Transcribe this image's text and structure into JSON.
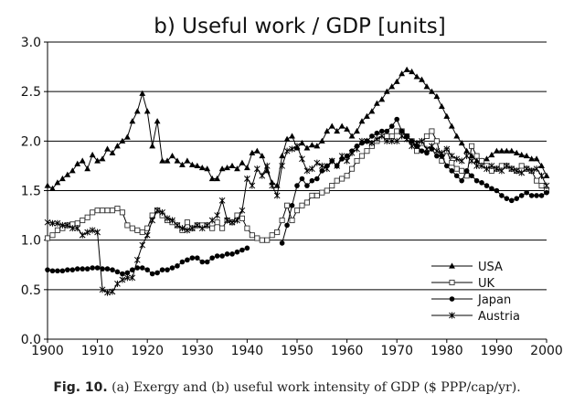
{
  "chart_data": {
    "type": "line",
    "title": "b) Useful work / GDP [units]",
    "xlabel": "",
    "ylabel": "",
    "xlim": [
      1900,
      2000
    ],
    "ylim": [
      0,
      3
    ],
    "x_ticks": [
      "1900",
      "1910",
      "1920",
      "1930",
      "1940",
      "1950",
      "1960",
      "1970",
      "1980",
      "1990",
      "2000"
    ],
    "y_ticks": [
      "0.0",
      "0.5",
      "1.0",
      "1.5",
      "2.0",
      "2.5",
      "3.0"
    ],
    "grid": "horizontal",
    "legend_position": "bottom-right",
    "series": [
      {
        "name": "USA",
        "marker": "triangle",
        "x": [
          1900,
          1901,
          1902,
          1903,
          1904,
          1905,
          1906,
          1907,
          1908,
          1909,
          1910,
          1911,
          1912,
          1913,
          1914,
          1915,
          1916,
          1917,
          1918,
          1919,
          1920,
          1921,
          1922,
          1923,
          1924,
          1925,
          1926,
          1927,
          1928,
          1929,
          1930,
          1931,
          1932,
          1933,
          1934,
          1935,
          1936,
          1937,
          1938,
          1939,
          1940,
          1941,
          1942,
          1943,
          1944,
          1945,
          1946,
          1947,
          1948,
          1949,
          1950,
          1951,
          1952,
          1953,
          1954,
          1955,
          1956,
          1957,
          1958,
          1959,
          1960,
          1961,
          1962,
          1963,
          1964,
          1965,
          1966,
          1967,
          1968,
          1969,
          1970,
          1971,
          1972,
          1973,
          1974,
          1975,
          1976,
          1977,
          1978,
          1979,
          1980,
          1981,
          1982,
          1983,
          1984,
          1985,
          1986,
          1987,
          1988,
          1989,
          1990,
          1991,
          1992,
          1993,
          1994,
          1995,
          1996,
          1997,
          1998,
          1999,
          2000
        ],
        "values": [
          1.55,
          1.52,
          1.58,
          1.62,
          1.66,
          1.7,
          1.77,
          1.8,
          1.72,
          1.86,
          1.8,
          1.82,
          1.92,
          1.88,
          1.95,
          2.0,
          2.04,
          2.2,
          2.3,
          2.48,
          2.3,
          1.95,
          2.2,
          1.8,
          1.8,
          1.85,
          1.8,
          1.76,
          1.8,
          1.76,
          1.75,
          1.73,
          1.72,
          1.62,
          1.62,
          1.72,
          1.73,
          1.75,
          1.72,
          1.78,
          1.73,
          1.88,
          1.9,
          1.85,
          1.7,
          1.58,
          1.55,
          1.85,
          2.02,
          2.05,
          1.93,
          1.98,
          1.93,
          1.96,
          1.95,
          2.0,
          2.1,
          2.15,
          2.1,
          2.15,
          2.12,
          2.05,
          2.1,
          2.2,
          2.25,
          2.3,
          2.38,
          2.42,
          2.5,
          2.55,
          2.6,
          2.68,
          2.72,
          2.7,
          2.65,
          2.62,
          2.55,
          2.5,
          2.45,
          2.35,
          2.25,
          2.15,
          2.05,
          1.98,
          1.9,
          1.85,
          1.8,
          1.8,
          1.82,
          1.86,
          1.9,
          1.9,
          1.9,
          1.9,
          1.88,
          1.86,
          1.85,
          1.82,
          1.82,
          1.75,
          1.65
        ]
      },
      {
        "name": "UK",
        "marker": "square",
        "x": [
          1900,
          1901,
          1902,
          1903,
          1904,
          1905,
          1906,
          1907,
          1908,
          1909,
          1910,
          1911,
          1912,
          1913,
          1914,
          1915,
          1916,
          1917,
          1918,
          1919,
          1920,
          1921,
          1922,
          1923,
          1924,
          1925,
          1926,
          1927,
          1928,
          1929,
          1930,
          1931,
          1932,
          1933,
          1934,
          1935,
          1936,
          1937,
          1938,
          1939,
          1940,
          1941,
          1942,
          1943,
          1944,
          1945,
          1946,
          1947,
          1948,
          1949,
          1950,
          1951,
          1952,
          1953,
          1954,
          1955,
          1956,
          1957,
          1958,
          1959,
          1960,
          1961,
          1962,
          1963,
          1964,
          1965,
          1966,
          1967,
          1968,
          1969,
          1970,
          1971,
          1972,
          1973,
          1974,
          1975,
          1976,
          1977,
          1978,
          1979,
          1980,
          1981,
          1982,
          1983,
          1984,
          1985,
          1986,
          1987,
          1988,
          1989,
          1990,
          1991,
          1992,
          1993,
          1994,
          1995,
          1996,
          1997,
          1998,
          1999,
          2000
        ],
        "values": [
          1.02,
          1.05,
          1.1,
          1.12,
          1.15,
          1.16,
          1.17,
          1.2,
          1.23,
          1.28,
          1.3,
          1.3,
          1.3,
          1.3,
          1.32,
          1.28,
          1.15,
          1.12,
          1.1,
          1.08,
          1.12,
          1.25,
          1.3,
          1.25,
          1.2,
          1.18,
          1.15,
          1.1,
          1.18,
          1.12,
          1.15,
          1.15,
          1.15,
          1.12,
          1.18,
          1.12,
          1.2,
          1.18,
          1.25,
          1.22,
          1.12,
          1.05,
          1.02,
          1.0,
          1.0,
          1.05,
          1.08,
          1.2,
          1.35,
          1.2,
          1.3,
          1.35,
          1.38,
          1.45,
          1.45,
          1.48,
          1.5,
          1.55,
          1.6,
          1.62,
          1.65,
          1.72,
          1.8,
          1.85,
          1.9,
          1.95,
          2.0,
          2.02,
          2.05,
          2.05,
          2.1,
          2.1,
          2.05,
          2.0,
          1.9,
          1.98,
          2.05,
          2.1,
          2.0,
          1.8,
          1.9,
          1.78,
          1.72,
          1.7,
          1.65,
          1.95,
          1.85,
          1.8,
          1.75,
          1.7,
          1.72,
          1.75,
          1.75,
          1.72,
          1.7,
          1.75,
          1.72,
          1.7,
          1.6,
          1.55,
          1.5
        ]
      },
      {
        "name": "Japan",
        "marker": "circle",
        "x": [
          1900,
          1901,
          1902,
          1903,
          1904,
          1905,
          1906,
          1907,
          1908,
          1909,
          1910,
          1911,
          1912,
          1913,
          1914,
          1915,
          1916,
          1917,
          1918,
          1919,
          1920,
          1921,
          1922,
          1923,
          1924,
          1925,
          1926,
          1927,
          1928,
          1929,
          1930,
          1931,
          1932,
          1933,
          1934,
          1935,
          1936,
          1937,
          1938,
          1939,
          1940,
          null,
          1947,
          1948,
          1949,
          1950,
          1951,
          1952,
          1953,
          1954,
          1955,
          1956,
          1957,
          1958,
          1959,
          1960,
          1961,
          1962,
          1963,
          1964,
          1965,
          1966,
          1967,
          1968,
          1969,
          1970,
          1971,
          1972,
          1973,
          1974,
          1975,
          1976,
          1977,
          1978,
          1979,
          1980,
          1981,
          1982,
          1983,
          1984,
          1985,
          1986,
          1987,
          1988,
          1989,
          1990,
          1991,
          1992,
          1993,
          1994,
          1995,
          1996,
          1997,
          1998,
          1999,
          2000
        ],
        "values": [
          0.7,
          0.69,
          0.69,
          0.69,
          0.7,
          0.7,
          0.71,
          0.71,
          0.71,
          0.72,
          0.72,
          0.71,
          0.71,
          0.7,
          0.68,
          0.66,
          0.67,
          0.7,
          0.72,
          0.72,
          0.7,
          0.66,
          0.67,
          0.7,
          0.7,
          0.72,
          0.74,
          0.78,
          0.8,
          0.82,
          0.82,
          0.78,
          0.78,
          0.82,
          0.84,
          0.84,
          0.86,
          0.86,
          0.88,
          0.9,
          0.92,
          null,
          0.97,
          1.15,
          1.35,
          1.55,
          1.62,
          1.55,
          1.6,
          1.62,
          1.7,
          1.75,
          1.8,
          1.75,
          1.82,
          1.85,
          1.9,
          1.95,
          1.98,
          2.0,
          2.05,
          2.08,
          2.1,
          2.1,
          2.15,
          2.22,
          2.1,
          2.05,
          2.0,
          1.95,
          1.9,
          1.88,
          1.92,
          1.85,
          1.85,
          1.75,
          1.7,
          1.65,
          1.6,
          1.7,
          1.65,
          1.6,
          1.58,
          1.55,
          1.52,
          1.5,
          1.45,
          1.42,
          1.4,
          1.42,
          1.45,
          1.48,
          1.45,
          1.45,
          1.45,
          1.48
        ]
      },
      {
        "name": "Austria",
        "marker": "asterisk",
        "x": [
          1900,
          1901,
          1902,
          1903,
          1904,
          1905,
          1906,
          1907,
          1908,
          1909,
          1910,
          1911,
          1912,
          1913,
          1914,
          1915,
          1916,
          1917,
          1918,
          1919,
          1920,
          1921,
          1922,
          1923,
          1924,
          1925,
          1926,
          1927,
          1928,
          1929,
          1930,
          1931,
          1932,
          1933,
          1934,
          1935,
          1936,
          1937,
          1938,
          1939,
          1940,
          1941,
          1942,
          1943,
          1944,
          1945,
          1946,
          1947,
          1948,
          1949,
          1950,
          1951,
          1952,
          1953,
          1954,
          1955,
          1956,
          1957,
          1958,
          1959,
          1960,
          1961,
          1962,
          1963,
          1964,
          1965,
          1966,
          1967,
          1968,
          1969,
          1970,
          1971,
          1972,
          1973,
          1974,
          1975,
          1976,
          1977,
          1978,
          1979,
          1980,
          1981,
          1982,
          1983,
          1984,
          1985,
          1986,
          1987,
          1988,
          1989,
          1990,
          1991,
          1992,
          1993,
          1994,
          1995,
          1996,
          1997,
          1998,
          1999,
          2000
        ],
        "values": [
          1.18,
          1.17,
          1.17,
          1.15,
          1.15,
          1.12,
          1.12,
          1.05,
          1.08,
          1.1,
          1.08,
          0.5,
          0.47,
          0.48,
          0.56,
          0.6,
          0.62,
          0.62,
          0.8,
          0.95,
          1.05,
          1.2,
          1.3,
          1.28,
          1.22,
          1.2,
          1.15,
          1.12,
          1.1,
          1.12,
          1.15,
          1.12,
          1.15,
          1.2,
          1.25,
          1.4,
          1.2,
          1.18,
          1.2,
          1.3,
          1.62,
          1.55,
          1.72,
          1.65,
          1.75,
          1.55,
          1.45,
          1.75,
          1.9,
          1.92,
          1.95,
          1.82,
          1.7,
          1.72,
          1.78,
          1.75,
          1.72,
          1.8,
          1.75,
          1.85,
          1.8,
          1.88,
          1.92,
          2.0,
          2.0,
          1.98,
          2.02,
          2.05,
          2.0,
          2.0,
          2.0,
          2.05,
          2.02,
          1.95,
          1.98,
          2.0,
          1.92,
          1.95,
          1.9,
          1.88,
          1.92,
          1.85,
          1.82,
          1.8,
          1.85,
          1.8,
          1.75,
          1.75,
          1.72,
          1.75,
          1.72,
          1.7,
          1.75,
          1.72,
          1.7,
          1.68,
          1.72,
          1.7,
          1.72,
          1.65,
          1.55
        ]
      }
    ]
  },
  "caption": {
    "figure_label": "Fig. 10.",
    "text": " (a) Exergy and (b) useful work intensity of GDP ($ PPP/cap/yr)."
  }
}
